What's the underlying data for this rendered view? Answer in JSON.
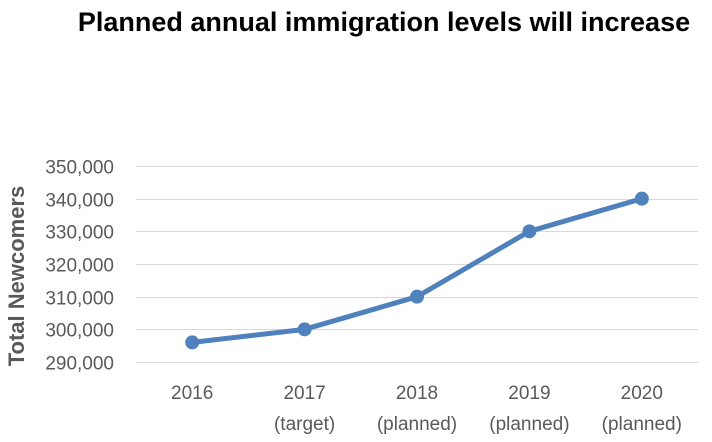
{
  "chart_data": {
    "type": "line",
    "title": "Planned annual immigration levels will increase",
    "xlabel": "",
    "ylabel": "Total Newcomers",
    "categories": [
      [
        "2016"
      ],
      [
        "2017",
        "(target)"
      ],
      [
        "2018",
        "(planned)"
      ],
      [
        "2019",
        "(planned)"
      ],
      [
        "2020",
        "(planned)"
      ]
    ],
    "series": [
      {
        "values": [
          296000,
          300000,
          310000,
          330000,
          340000
        ]
      }
    ],
    "ylim": [
      290000,
      350000
    ],
    "yticks": [
      {
        "value": 290000,
        "label": "290,000"
      },
      {
        "value": 300000,
        "label": "300,000"
      },
      {
        "value": 310000,
        "label": "310,000"
      },
      {
        "value": 320000,
        "label": "320,000"
      },
      {
        "value": 330000,
        "label": "330,000"
      },
      {
        "value": 340000,
        "label": "340,000"
      },
      {
        "value": 350000,
        "label": "350,000"
      }
    ],
    "grid": true,
    "legend": "none",
    "colors": {
      "series": "#4f81bd",
      "grid": "#d9d9d9",
      "text": "#595959"
    }
  }
}
